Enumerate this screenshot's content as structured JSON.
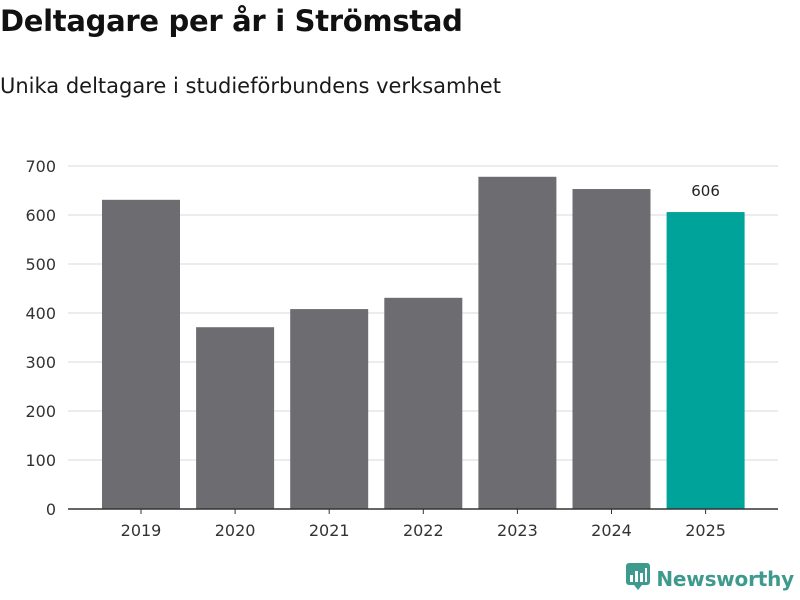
{
  "colors": {
    "bar": "#6d6c71",
    "highlight": "#00a39a",
    "grid": "#d9d9d9",
    "axis": "#333333",
    "brand": "#3f9a8e"
  },
  "brand": {
    "name": "Newsworthy",
    "icon": "newsworthy-logo-icon"
  },
  "chart_data": {
    "type": "bar",
    "title": "Deltagare per år i Strömstad",
    "subtitle": "Unika deltagare i studieförbundens verksamhet",
    "xlabel": "",
    "ylabel": "",
    "categories": [
      "2019",
      "2020",
      "2021",
      "2022",
      "2023",
      "2024",
      "2025"
    ],
    "values": [
      631,
      371,
      408,
      431,
      678,
      653,
      606
    ],
    "highlight_index": 6,
    "data_labels": [
      {
        "index": 6,
        "text": "606"
      }
    ],
    "ylim": [
      0,
      700
    ],
    "yticks": [
      0,
      100,
      200,
      300,
      400,
      500,
      600,
      700
    ],
    "grid": true,
    "legend": "none"
  }
}
